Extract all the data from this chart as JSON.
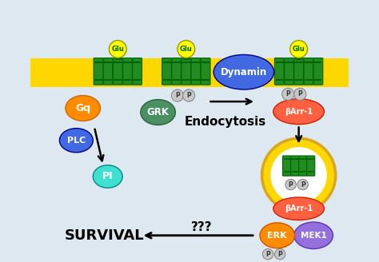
{
  "bg_color": "#dde8f0",
  "membrane_color": "#FFD700",
  "membrane_border": "#DAA520",
  "receptor_color": "#228B22",
  "receptor_edge": "#006400",
  "glu_color": "#FFFF00",
  "glu_edge": "#999900",
  "glu_text_color": "#006600",
  "gq_color": "#FF8C00",
  "gq_edge": "#cc6600",
  "plc_color": "#4169E1",
  "plc_edge": "#000088",
  "pi_color": "#40E0D0",
  "pi_edge": "#008888",
  "grk_color": "#4a9060",
  "grk_edge": "#2d6040",
  "p_color": "#C8C8C8",
  "p_edge": "#808080",
  "barr_color": "#FF6040",
  "barr_edge": "#cc2000",
  "dynamin_color": "#4169E1",
  "dynamin_edge": "#000088",
  "endosome_color": "#FFD700",
  "endosome_edge": "#DAA520",
  "erk_color": "#FF8C00",
  "erk_edge": "#cc5500",
  "mek1_color": "#9370DB",
  "mek1_edge": "#6030bb",
  "survival_text": "SURVIVAL",
  "endocytosis_text": "Endocytosis",
  "dynamin_text": "Dynamin",
  "qqq_text": "???",
  "labels": {
    "Glu": "Glu",
    "Gq": "Gq",
    "PLC": "PLC",
    "PI": "PI",
    "GRK": "GRK",
    "P": "P",
    "bArr1": "βArr-1",
    "ERK": "ERK",
    "MEK1": "MEK1"
  }
}
